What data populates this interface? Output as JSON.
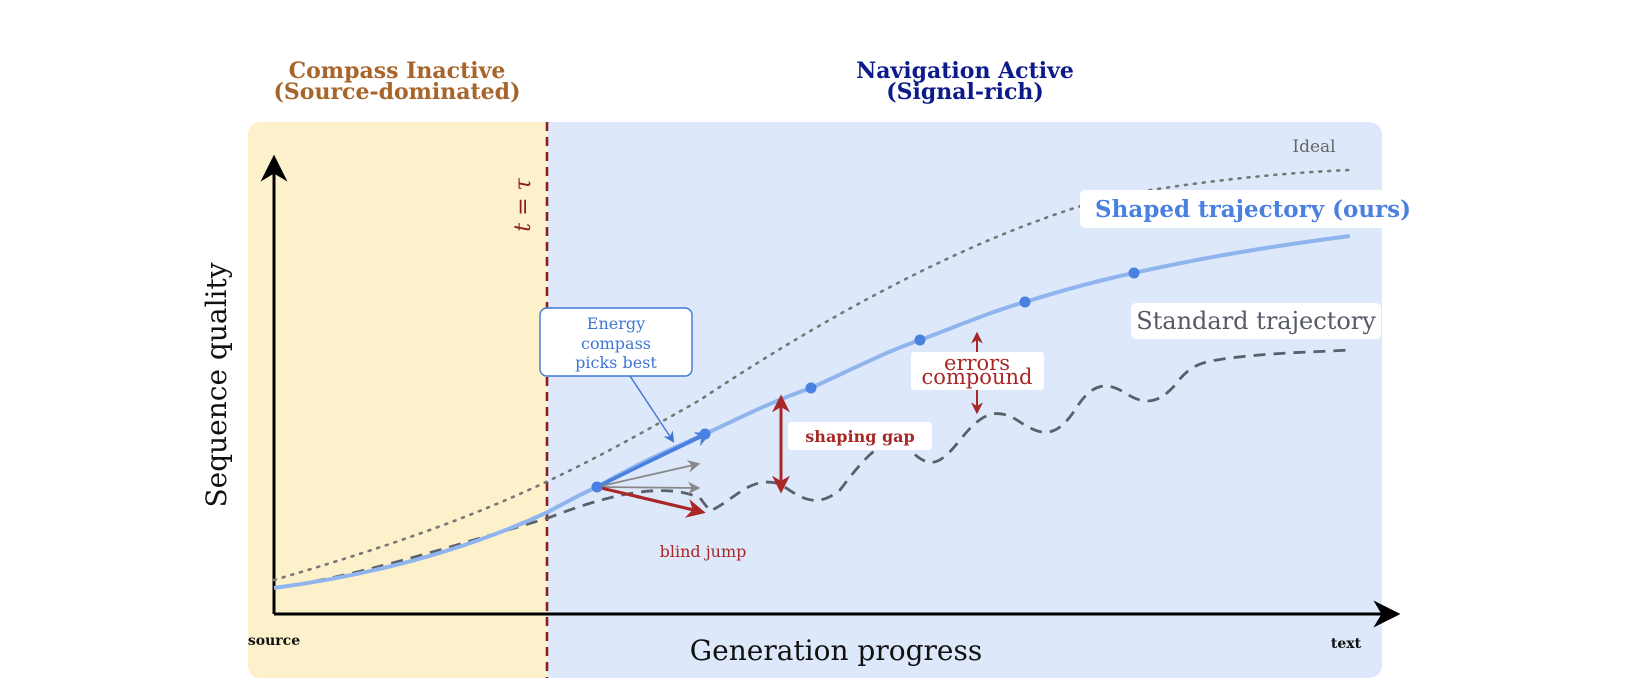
{
  "regions": {
    "inactive": {
      "title_line1": "Compass Inactive",
      "title_line2": "(Source-dominated)",
      "fill": "#fcf1cb",
      "title_color": "#a8652a"
    },
    "active": {
      "title_line1": "Navigation Active",
      "title_line2": "(Signal-rich)",
      "fill": "#dde9fa",
      "title_color": "#0d1a8a"
    }
  },
  "threshold": {
    "label": "t = τ",
    "color": "#8b1e1e"
  },
  "axes": {
    "y_label": "Sequence quality",
    "x_label": "Generation progress",
    "x_start_label": "source",
    "x_end_label": "text"
  },
  "curves": {
    "ideal": {
      "label": "Ideal",
      "color": "#777777"
    },
    "shaped": {
      "label": "Shaped trajectory (ours)",
      "color": "#8fb4ee",
      "label_color": "#4a80e0",
      "marker_color": "#4a80e0"
    },
    "standard": {
      "label": "Standard trajectory",
      "color": "#5a5f6a",
      "label_color": "#555a66"
    }
  },
  "annotations": {
    "energy_compass": {
      "line1": "Energy",
      "line2": "compass",
      "line3": "picks best",
      "color": "#3f76d6"
    },
    "blind_jump": {
      "label": "blind jump",
      "color": "#a82828"
    },
    "shaping_gap": {
      "label": "shaping gap",
      "color": "#a82828"
    },
    "errors_compound": {
      "line1": "errors",
      "line2": "compound",
      "color": "#a82828"
    }
  }
}
